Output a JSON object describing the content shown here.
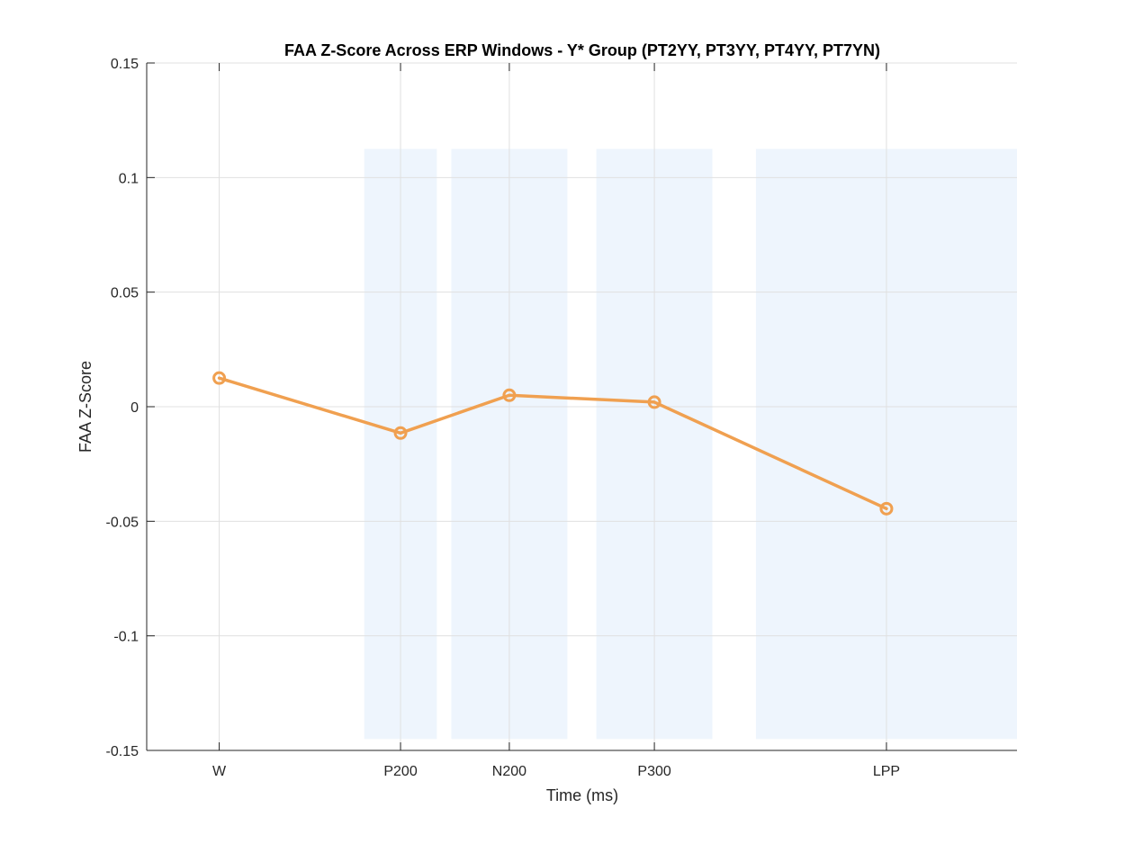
{
  "chart_data": {
    "type": "line",
    "title": "FAA Z-Score Across ERP Windows - Y* Group (PT2YY, PT3YY, PT4YY, PT7YN)",
    "xlabel": "Time (ms)",
    "ylabel": "FAA Z-Score",
    "categories": [
      "W",
      "P200",
      "N200",
      "P300",
      "LPP"
    ],
    "x": [
      0,
      250,
      400,
      600,
      920
    ],
    "xlim": [
      -100,
      1100
    ],
    "ylim": [
      -0.15,
      0.15
    ],
    "yticks": [
      0.15,
      0.1,
      0.05,
      0,
      -0.05,
      -0.1,
      -0.15
    ],
    "ytick_labels": [
      "0.15",
      "0.1",
      "0.05",
      "0",
      "-0.05",
      "-0.1",
      "-0.15"
    ],
    "grid": true,
    "series": [
      {
        "values": [
          0.0125,
          -0.0115,
          0.005,
          0.002,
          -0.0445
        ],
        "color": "#F0A050",
        "marker": "circle"
      }
    ],
    "shaded_windows": [
      {
        "x0": 200,
        "x1": 300
      },
      {
        "x0": 320,
        "x1": 480
      },
      {
        "x0": 520,
        "x1": 680
      },
      {
        "x0": 740,
        "x1": 1100
      }
    ],
    "shade_range": [
      -0.145,
      0.1125
    ],
    "shade_color": "#EEF5FD",
    "grid_color": "#E0E0E0",
    "axis_color": "#262626"
  }
}
